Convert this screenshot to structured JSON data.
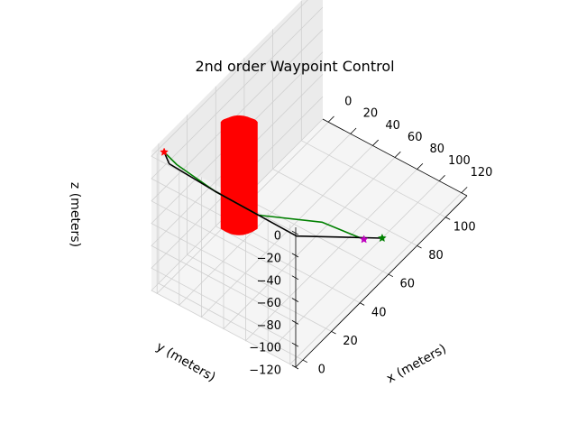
{
  "chart_data": {
    "type": "line3d",
    "title": "2nd order Waypoint Control",
    "xlabel": "x (meters)",
    "ylabel": "y (meters)",
    "zlabel": "z (meters)",
    "xlim": [
      -5,
      115
    ],
    "ylim": [
      -5,
      125
    ],
    "zlim": [
      -120,
      5
    ],
    "x_ticks": [
      "0",
      "20",
      "40",
      "60",
      "80",
      "100"
    ],
    "y_ticks": [
      "0",
      "20",
      "40",
      "60",
      "80",
      "100",
      "120"
    ],
    "z_ticks": [
      "0",
      "−20",
      "−40",
      "−60",
      "−80",
      "−100",
      "−120"
    ],
    "grid": true,
    "colors": {
      "obstacle": "#ff0000",
      "desired_path": "#008000",
      "actual_path": "#000000",
      "start_marker": "#ff0000",
      "end_marker_desired": "#bf00bf",
      "end_marker_actual": "#008000",
      "pane_left": "#f2f2f2",
      "pane_right": "#ebebeb",
      "pane_floor": "#f5f5f5"
    },
    "series": [
      {
        "color": "#008000",
        "points": [
          [
            0,
            0,
            0
          ],
          [
            5,
            5,
            -15
          ],
          [
            20,
            20,
            -50
          ],
          [
            35,
            40,
            -80
          ],
          [
            60,
            65,
            -105
          ],
          [
            70,
            90,
            -120
          ]
        ]
      },
      {
        "color": "#000000",
        "points": [
          [
            0,
            0,
            0
          ],
          [
            2,
            2,
            -12
          ],
          [
            20,
            20,
            -50
          ],
          [
            35,
            38,
            -80
          ],
          [
            50,
            55,
            -110
          ],
          [
            75,
            100,
            -120
          ]
        ]
      }
    ],
    "markers": [
      {
        "marker": "star",
        "color": "#ff0000",
        "point": [
          0,
          0,
          0
        ]
      },
      {
        "marker": "star",
        "color": "#bf00bf",
        "point": [
          70,
          90,
          -120
        ]
      },
      {
        "marker": "star",
        "color": "#008000",
        "point": [
          75,
          100,
          -120
        ]
      }
    ],
    "obstacle": {
      "type": "cylinder",
      "color": "#ff0000",
      "center": [
        37,
        20
      ],
      "radius": 7,
      "z_range": [
        -105,
        -10
      ]
    }
  }
}
